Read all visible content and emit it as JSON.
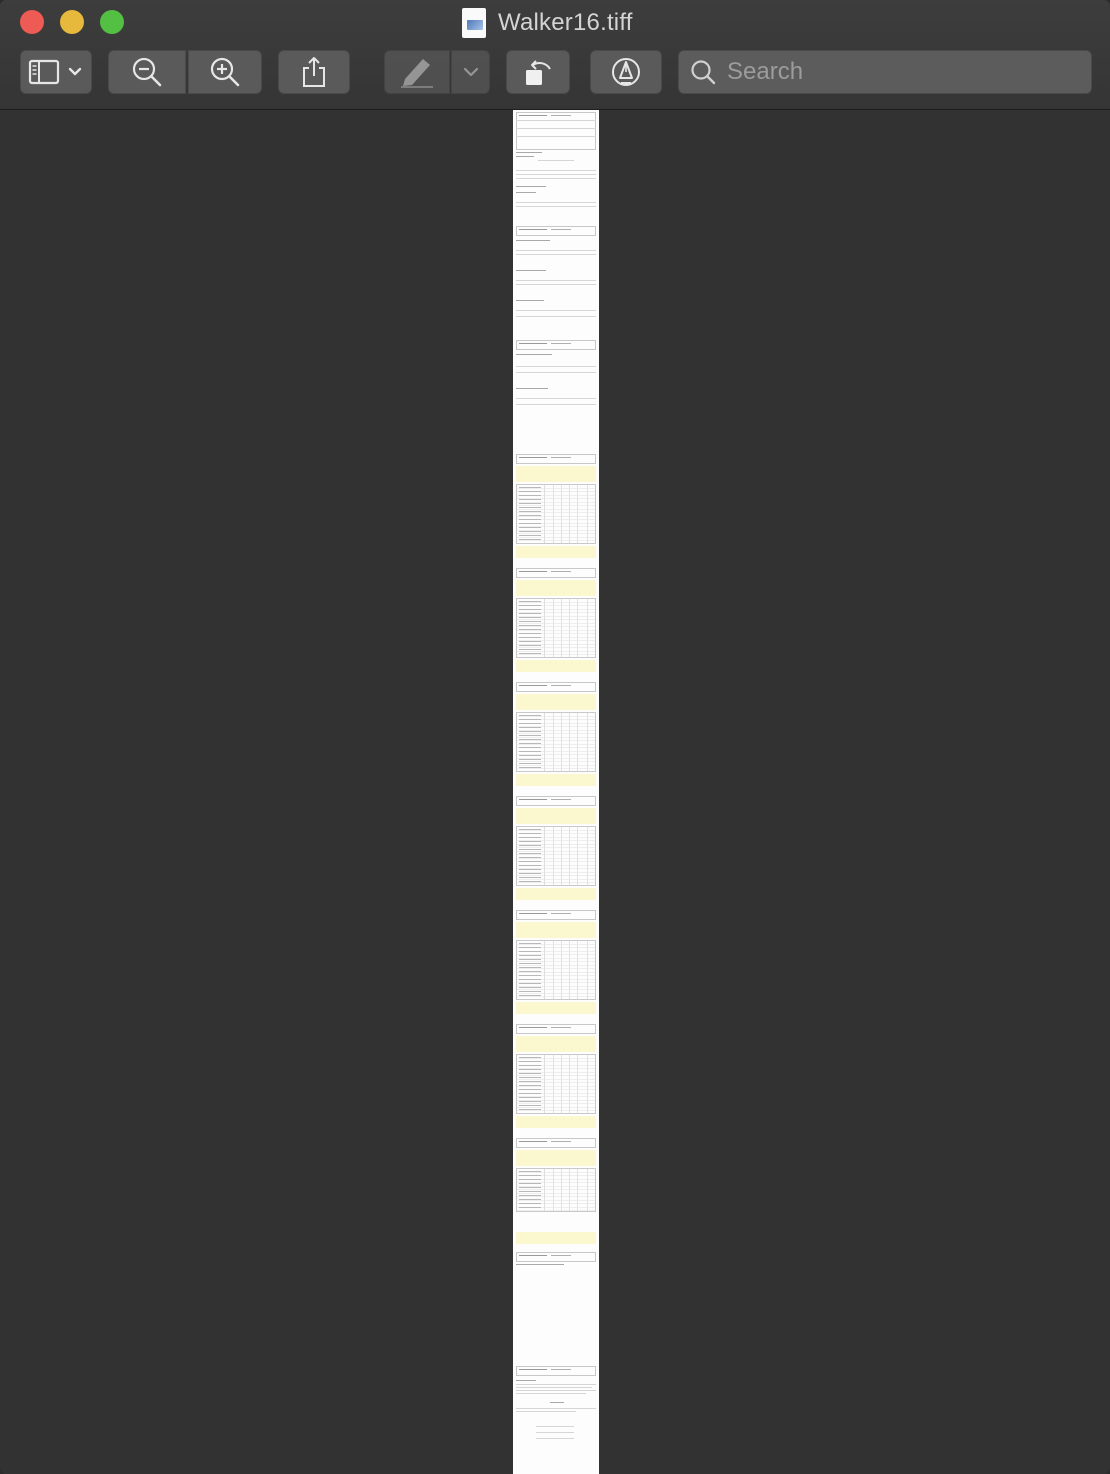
{
  "window": {
    "title": "Walker16.tiff"
  },
  "toolbar": {
    "buttons": [
      {
        "name": "sidebar-toggle",
        "icon": "sidebar-icon"
      },
      {
        "name": "zoom-out",
        "icon": "zoom-out-icon"
      },
      {
        "name": "zoom-in",
        "icon": "zoom-in-icon"
      },
      {
        "name": "share",
        "icon": "share-icon"
      },
      {
        "name": "markup",
        "icon": "highlighter-icon"
      },
      {
        "name": "markup-menu",
        "icon": "chevron-down-icon"
      },
      {
        "name": "rotate",
        "icon": "rotate-left-icon"
      },
      {
        "name": "annotate",
        "icon": "pen-circle-icon"
      }
    ]
  },
  "search": {
    "placeholder": "Search"
  },
  "colors": {
    "traffic_close": "#ee5b55",
    "traffic_minimize": "#e6b93c",
    "traffic_zoom": "#54c043",
    "canvas_background": "#323232",
    "page_background": "#fdfdfd",
    "form_highlight": "#fbf7cf"
  }
}
